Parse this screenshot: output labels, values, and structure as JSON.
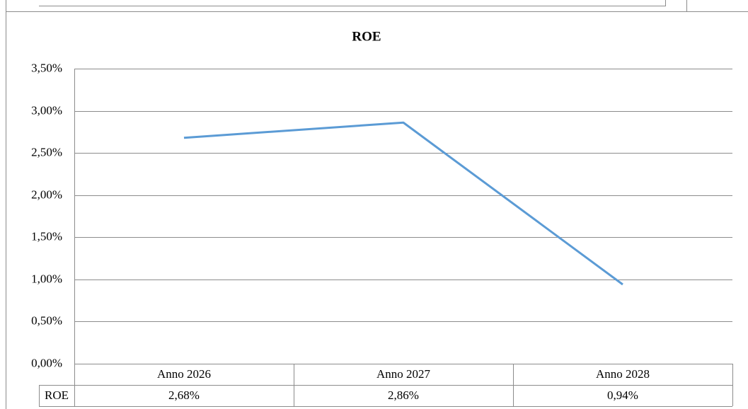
{
  "chart_data": {
    "type": "line",
    "title": "ROE",
    "categories": [
      "Anno 2026",
      "Anno 2027",
      "Anno 2028"
    ],
    "series": [
      {
        "name": "ROE",
        "color": "#5b9bd5",
        "values": [
          2.68,
          2.86,
          0.94
        ],
        "value_labels": [
          "2,68%",
          "2,86%",
          "0,94%"
        ]
      }
    ],
    "ylim": [
      0,
      3.5
    ],
    "yticks": [
      {
        "value": 0,
        "label": "0,00%"
      },
      {
        "value": 0.5,
        "label": "0,50%"
      },
      {
        "value": 1,
        "label": "1,00%"
      },
      {
        "value": 1.5,
        "label": "1,50%"
      },
      {
        "value": 2,
        "label": "2,00%"
      },
      {
        "value": 2.5,
        "label": "2,50%"
      },
      {
        "value": 3,
        "label": "3,00%"
      },
      {
        "value": 3.5,
        "label": "3,50%"
      }
    ],
    "grid": true
  }
}
